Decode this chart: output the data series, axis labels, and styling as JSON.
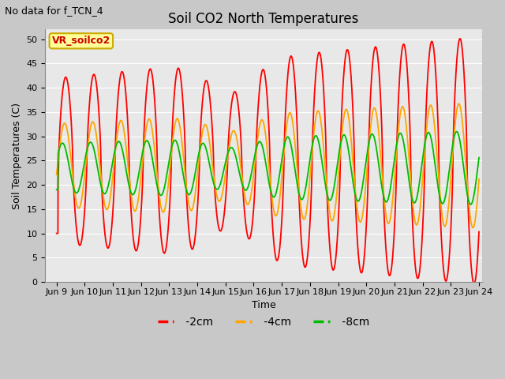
{
  "title": "Soil CO2 North Temperatures",
  "no_data_text": "No data for f_TCN_4",
  "xlabel": "Time",
  "ylabel": "Soil Temperatures (C)",
  "ylim": [
    0,
    52
  ],
  "yticks": [
    0,
    5,
    10,
    15,
    20,
    25,
    30,
    35,
    40,
    45,
    50
  ],
  "xtick_positions": [
    9,
    10,
    11,
    12,
    13,
    14,
    15,
    16,
    17,
    18,
    19,
    20,
    21,
    22,
    23,
    24
  ],
  "xtick_labels": [
    "Jun 9",
    "Jun 10",
    "Jun 11",
    "Jun 12",
    "Jun 13",
    "Jun 14",
    "Jun 15",
    "Jun 16",
    "Jun 17",
    "Jun 18",
    "Jun 19",
    "Jun 20",
    "Jun 21",
    "Jun 22",
    "Jun 23",
    "Jun 24"
  ],
  "xlim_start": 8.6,
  "xlim_end": 24.1,
  "legend_label": "VR_soilco2",
  "legend_box_facecolor": "#ffff99",
  "legend_box_edgecolor": "#ccaa00",
  "legend_text_color": "#cc0000",
  "fig_facecolor": "#c8c8c8",
  "plot_facecolor": "#e8e8e8",
  "grid_color": "#ffffff",
  "color_2cm": "#ff0000",
  "color_4cm": "#ffa500",
  "color_8cm": "#00bb00",
  "line_width": 1.3,
  "legend_fontsize": 10,
  "title_fontsize": 12,
  "axis_fontsize": 9,
  "tick_fontsize": 8
}
